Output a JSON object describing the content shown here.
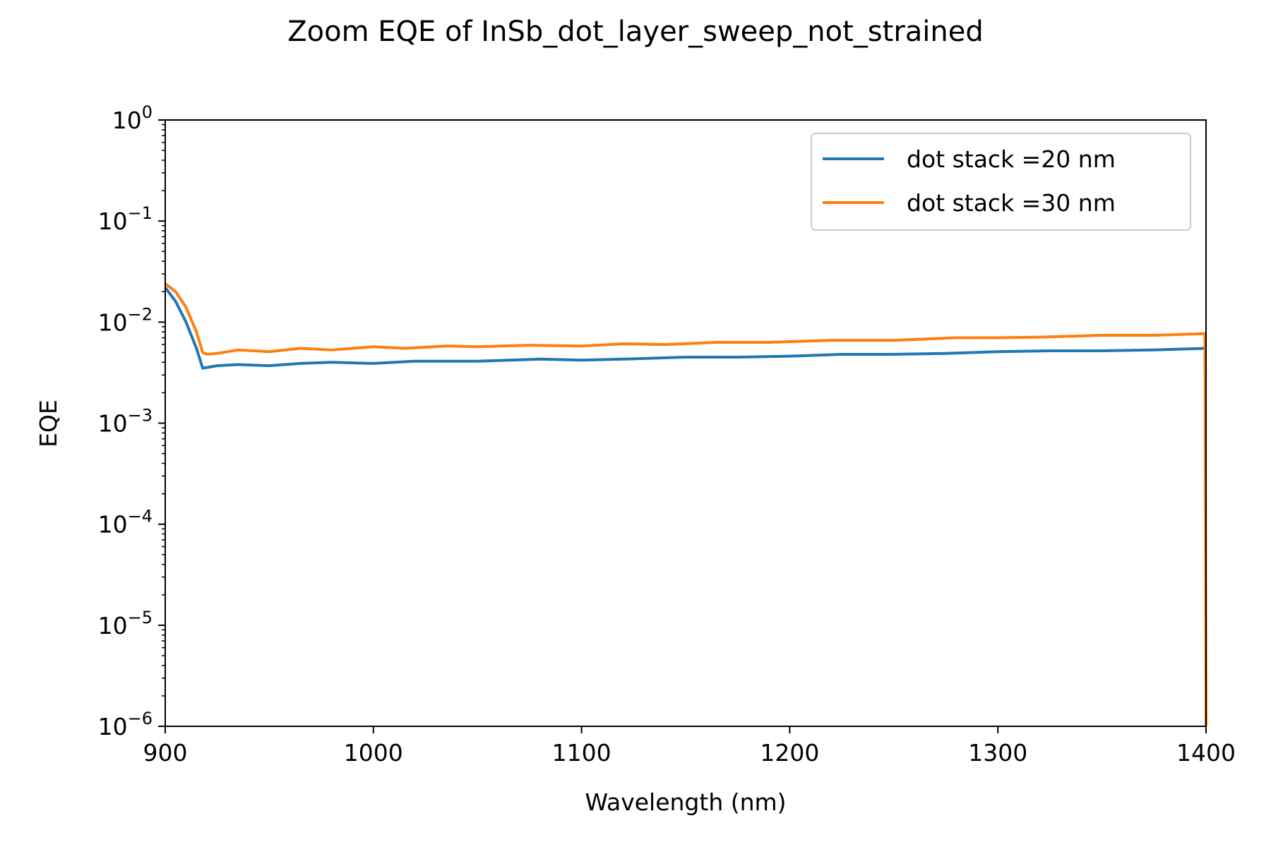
{
  "chart_data": {
    "type": "line",
    "title": "Zoom EQE of InSb_dot_layer_sweep_not_strained",
    "xlabel": "Wavelength (nm)",
    "ylabel": "EQE",
    "xlim": [
      900,
      1400
    ],
    "ylim": [
      1e-06,
      1
    ],
    "yscale": "log",
    "xticks": [
      "900",
      "1000",
      "1100",
      "1200",
      "1300",
      "1400"
    ],
    "yticks": [
      {
        "base": "10",
        "exp": "−6"
      },
      {
        "base": "10",
        "exp": "−5"
      },
      {
        "base": "10",
        "exp": "−4"
      },
      {
        "base": "10",
        "exp": "−3"
      },
      {
        "base": "10",
        "exp": "−2"
      },
      {
        "base": "10",
        "exp": "−1"
      },
      {
        "base": "10",
        "exp": "0"
      }
    ],
    "grid": false,
    "legend_position": "upper-right",
    "series": [
      {
        "name": "dot stack =20 nm",
        "color": "#1f77b4",
        "x": [
          900,
          905,
          910,
          915,
          918,
          925,
          935,
          950,
          965,
          980,
          1000,
          1020,
          1050,
          1080,
          1100,
          1120,
          1150,
          1175,
          1200,
          1225,
          1250,
          1275,
          1300,
          1325,
          1350,
          1375,
          1400
        ],
        "y": [
          0.022,
          0.016,
          0.01,
          0.0055,
          0.0035,
          0.0037,
          0.0038,
          0.0037,
          0.0039,
          0.004,
          0.0039,
          0.0041,
          0.0041,
          0.0043,
          0.0042,
          0.0043,
          0.0045,
          0.0045,
          0.0046,
          0.0048,
          0.0048,
          0.0049,
          0.0051,
          0.0052,
          0.0052,
          0.0053,
          0.0055
        ]
      },
      {
        "name": "dot stack =30 nm",
        "color": "#ff7f0e",
        "x": [
          900,
          905,
          910,
          915,
          918,
          920,
          925,
          935,
          950,
          965,
          980,
          1000,
          1015,
          1035,
          1050,
          1075,
          1100,
          1120,
          1140,
          1165,
          1190,
          1220,
          1250,
          1280,
          1300,
          1320,
          1350,
          1375,
          1399.5,
          1400
        ],
        "y": [
          0.024,
          0.02,
          0.014,
          0.008,
          0.005,
          0.0048,
          0.0049,
          0.0053,
          0.0051,
          0.0055,
          0.0053,
          0.0057,
          0.0055,
          0.0058,
          0.0057,
          0.0059,
          0.0058,
          0.0061,
          0.006,
          0.0063,
          0.0063,
          0.0066,
          0.0066,
          0.007,
          0.007,
          0.0071,
          0.0074,
          0.0074,
          0.0077,
          1e-06
        ]
      }
    ]
  }
}
